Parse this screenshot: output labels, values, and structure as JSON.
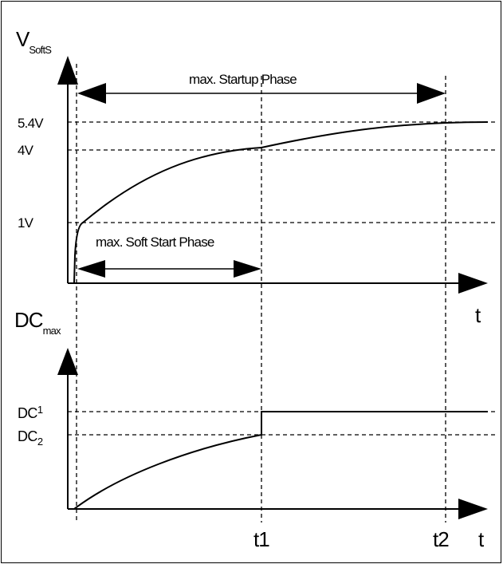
{
  "top_plot": {
    "y_axis_label": "V",
    "y_axis_label_sub": "SoftS",
    "x_axis_label": "t",
    "level_labels": [
      "5.4V",
      "4V",
      "1V"
    ],
    "startup_phase_label": "max. Startup Phase",
    "soft_start_phase_label": "max. Soft Start Phase"
  },
  "bottom_plot": {
    "y_axis_label": "DC",
    "y_axis_label_sub": "max",
    "x_axis_label": "t",
    "dc1_label": "DC",
    "dc1_sub": "1",
    "dc2_label": "DC",
    "dc2_sub": "2",
    "time_markers": [
      "t1",
      "t2"
    ]
  }
}
